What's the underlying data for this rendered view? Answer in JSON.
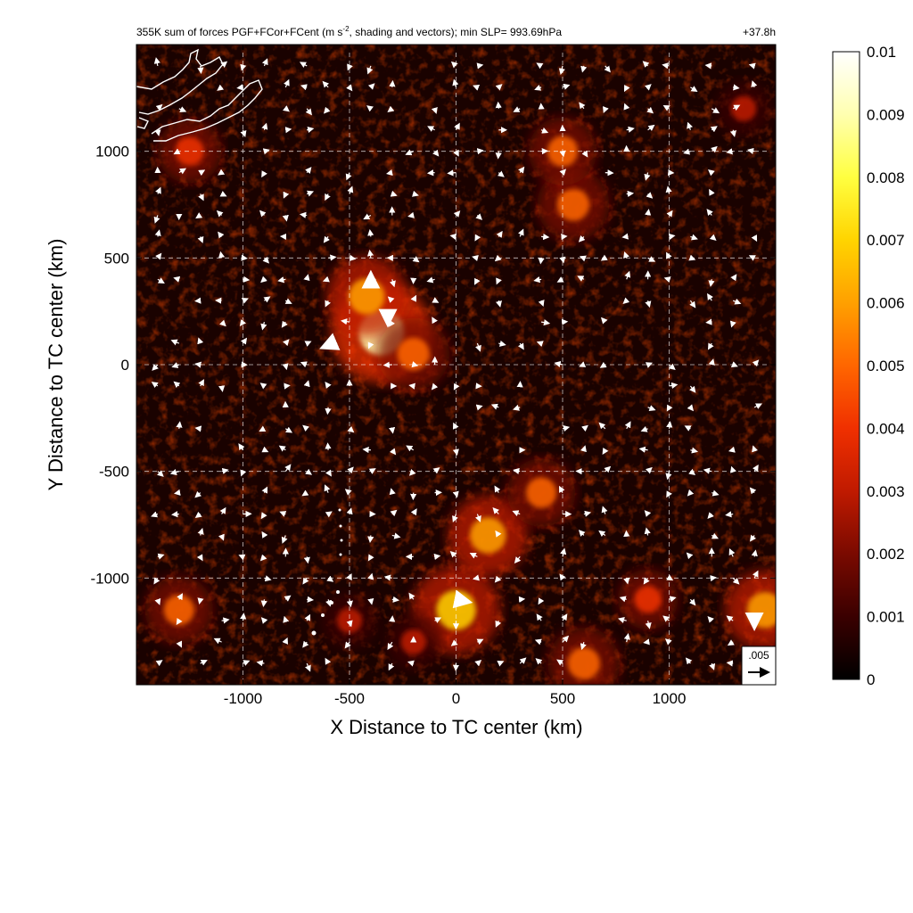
{
  "chart_data": {
    "type": "heatmap",
    "title": "355K sum of forces PGF+FCor+FCent (m s",
    "title_superscript": "-2",
    "title_suffix": ", shading and vectors); min SLP= 993.69hPa",
    "forecast_hour": "+37.8h",
    "xlabel": "X Distance to TC center (km)",
    "ylabel": "Y Distance to TC center (km)",
    "xlim": [
      -1500,
      1500
    ],
    "ylim": [
      -1500,
      1500
    ],
    "x_ticks": [
      "-1000",
      "-500",
      "0",
      "500",
      "1000"
    ],
    "y_ticks": [
      "1000",
      "500",
      "0",
      "-500",
      "-1000"
    ],
    "grid": "dashed",
    "colorbar": {
      "labels": [
        "0.01",
        "0.009",
        "0.008",
        "0.007",
        "0.006",
        "0.005",
        "0.004",
        "0.003",
        "0.002",
        "0.001",
        "0"
      ],
      "min": 0,
      "max": 0.01,
      "colors": [
        "#000000",
        "#3a0000",
        "#7a0a00",
        "#c01a00",
        "#f03000",
        "#ff6600",
        "#ffa000",
        "#ffd400",
        "#ffff40",
        "#ffffb0",
        "#ffffff"
      ]
    },
    "reference_vector": {
      "label": ".005",
      "value": 0.005
    },
    "hotspots": [
      {
        "x": -350,
        "y": 150,
        "strength": 0.0085
      },
      {
        "x": -420,
        "y": 320,
        "strength": 0.006
      },
      {
        "x": -200,
        "y": 50,
        "strength": 0.005
      },
      {
        "x": 0,
        "y": -1150,
        "strength": 0.007
      },
      {
        "x": 150,
        "y": -800,
        "strength": 0.006
      },
      {
        "x": 400,
        "y": -600,
        "strength": 0.0045
      },
      {
        "x": 550,
        "y": 750,
        "strength": 0.005
      },
      {
        "x": 500,
        "y": 1000,
        "strength": 0.0045
      },
      {
        "x": 1450,
        "y": -1150,
        "strength": 0.006
      },
      {
        "x": 600,
        "y": -1400,
        "strength": 0.005
      },
      {
        "x": -1250,
        "y": 1000,
        "strength": 0.004
      },
      {
        "x": -1300,
        "y": -1150,
        "strength": 0.0045
      },
      {
        "x": -500,
        "y": -1200,
        "strength": 0.003
      },
      {
        "x": 900,
        "y": -1100,
        "strength": 0.0035
      },
      {
        "x": 1350,
        "y": 1200,
        "strength": 0.003
      },
      {
        "x": -200,
        "y": -1300,
        "strength": 0.003
      }
    ],
    "large_vectors": [
      {
        "x": -580,
        "y": 100,
        "u": -0.0035,
        "v": -0.0015
      },
      {
        "x": 0,
        "y": -1100,
        "u": 0.005,
        "v": -0.001
      },
      {
        "x": -320,
        "y": 220,
        "u": 0.0,
        "v": -0.0018
      },
      {
        "x": -400,
        "y": 400,
        "u": 0.0,
        "v": 0.0015
      },
      {
        "x": 1400,
        "y": -1200,
        "u": 0.0,
        "v": -0.002
      }
    ]
  }
}
